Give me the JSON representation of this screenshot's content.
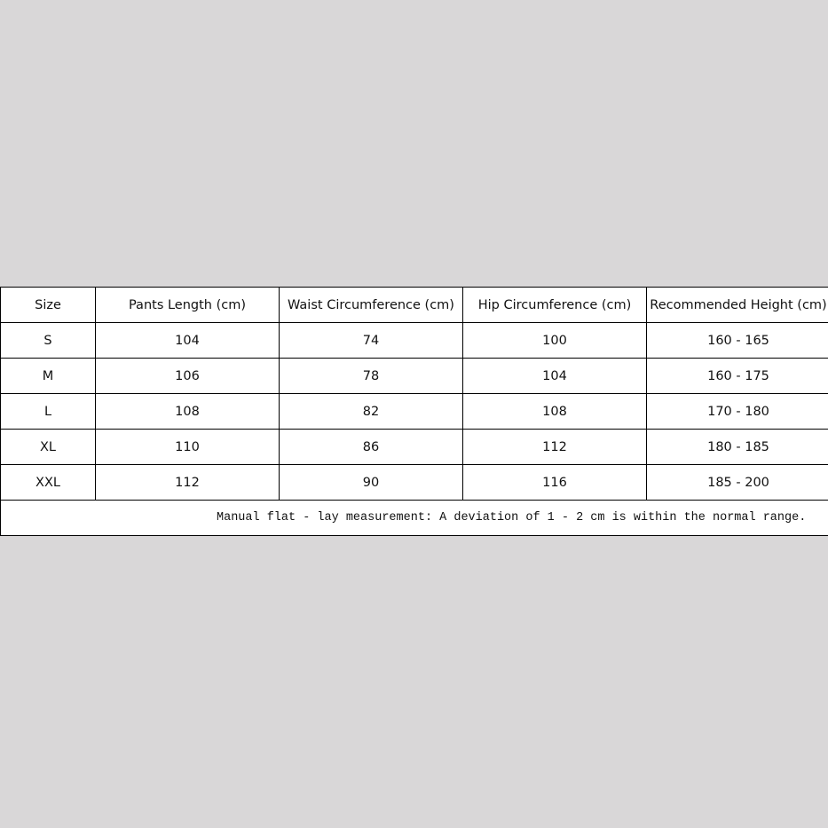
{
  "table": {
    "headers": [
      "Size",
      "Pants Length (cm)",
      "Waist Circumference (cm)",
      "Hip Circumference (cm)",
      "Recommended Height (cm)"
    ],
    "rows": [
      [
        "S",
        "104",
        "74",
        "100",
        "160 - 165"
      ],
      [
        "M",
        "106",
        "78",
        "104",
        "160 - 175"
      ],
      [
        "L",
        "108",
        "82",
        "108",
        "170 - 180"
      ],
      [
        "XL",
        "110",
        "86",
        "112",
        "180 - 185"
      ],
      [
        "XXL",
        "112",
        "90",
        "116",
        "185 - 200"
      ]
    ],
    "note": "Manual flat - lay measurement: A deviation of 1 - 2 cm is within the normal range."
  },
  "colors": {
    "background": "#d9d7d8",
    "table": "#ffffff",
    "border": "#000000"
  }
}
